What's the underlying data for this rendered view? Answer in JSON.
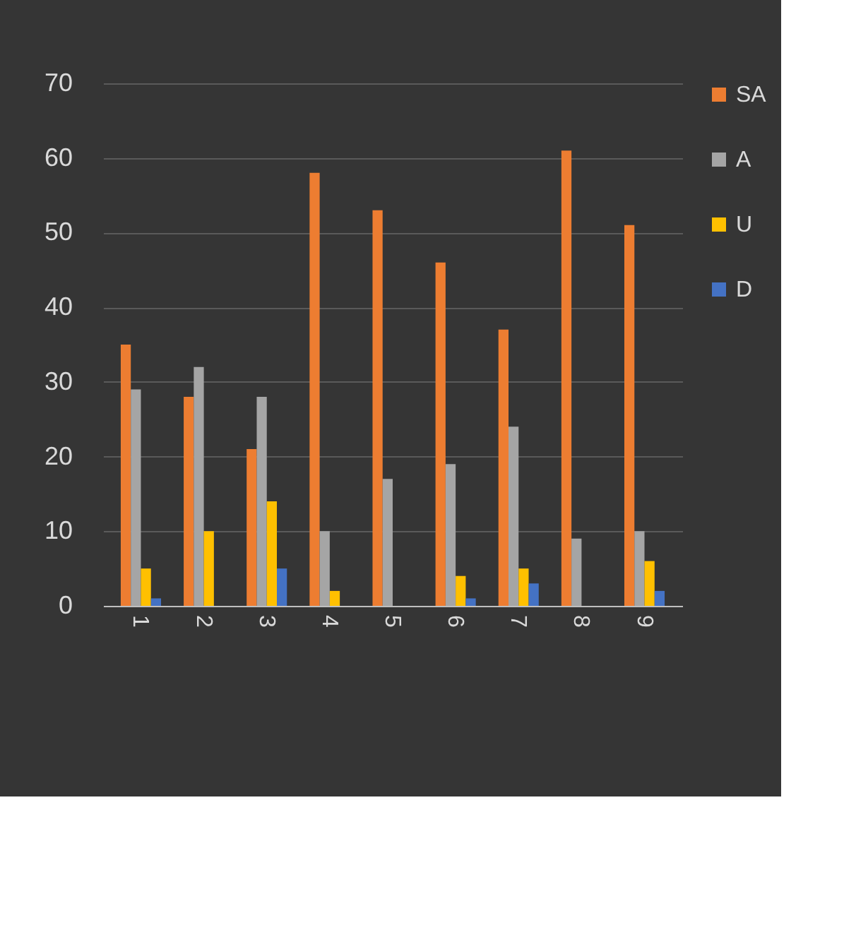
{
  "chart_data": {
    "type": "bar",
    "categories": [
      "1",
      "2",
      "3",
      "4",
      "5",
      "6",
      "7",
      "8",
      "9",
      null
    ],
    "series": [
      {
        "name": "SA",
        "color": "#ed7d31",
        "values": [
          35,
          28,
          21,
          58,
          53,
          46,
          37,
          61,
          51,
          null
        ]
      },
      {
        "name": "A",
        "color": "#a5a5a5",
        "values": [
          29,
          32,
          28,
          10,
          17,
          19,
          24,
          9,
          10,
          null
        ]
      },
      {
        "name": "U",
        "color": "#ffc000",
        "values": [
          5,
          10,
          14,
          2,
          0,
          4,
          5,
          0,
          6,
          null
        ]
      },
      {
        "name": "D",
        "color": "#4472c4",
        "values": [
          1,
          0,
          5,
          0,
          0,
          1,
          3,
          0,
          2,
          null
        ]
      }
    ],
    "ylim": [
      0,
      70
    ],
    "yticks": [
      0,
      10,
      20,
      30,
      40,
      50,
      60,
      70
    ],
    "grid": "y",
    "legend": "right"
  }
}
